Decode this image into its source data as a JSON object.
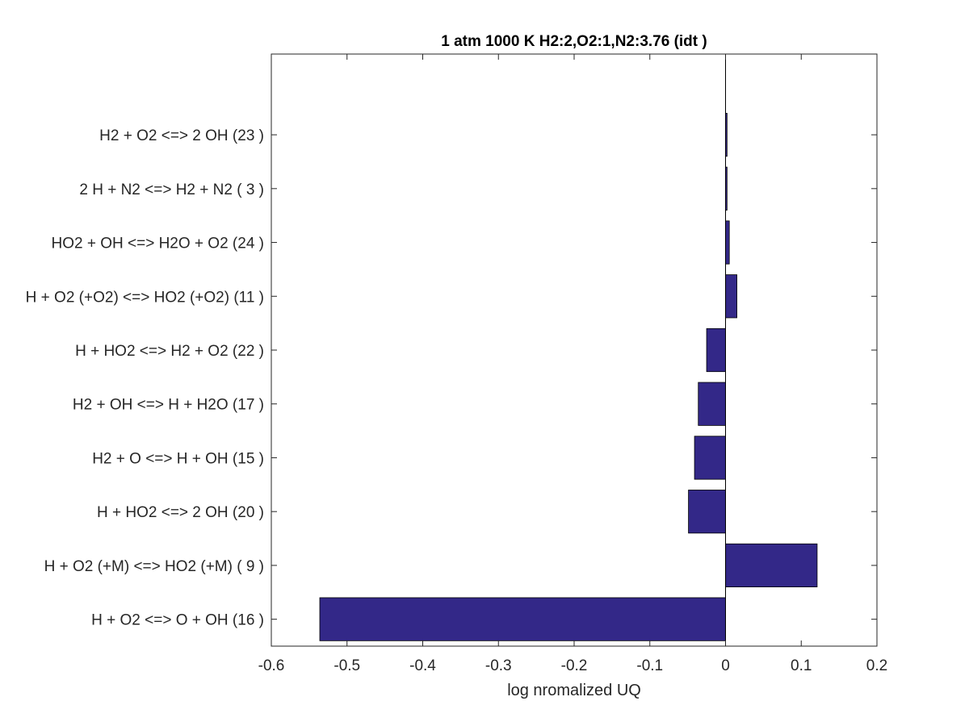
{
  "chart_data": {
    "type": "bar",
    "orientation": "horizontal",
    "title": "1 atm 1000 K H2:2,O2:1,N2:3.76 (idt )",
    "xlabel": "log nromalized UQ",
    "ylabel": "",
    "xlim": [
      -0.6,
      0.2
    ],
    "xticks": [
      "-0.6",
      "-0.5",
      "-0.4",
      "-0.3",
      "-0.2",
      "-0.1",
      "0",
      "0.1",
      "0.2"
    ],
    "grid": false,
    "legend": "none",
    "bar_color": "#332888",
    "categories": [
      "H + O2 <=> O + OH (16 )",
      "H + O2 (+M) <=> HO2 (+M) ( 9 )",
      "H + HO2 <=> 2 OH (20 )",
      "H2 + O <=> H + OH (15 )",
      "H2 + OH <=> H + H2O (17 )",
      "H + HO2 <=> H2 + O2 (22 )",
      "H + O2 (+O2) <=> HO2 (+O2) (11 )",
      "HO2 + OH <=> H2O + O2 (24 )",
      "2 H + N2 <=> H2 + N2 ( 3 )",
      "H2 + O2 <=> 2 OH (23 )"
    ],
    "values": [
      -0.536,
      0.121,
      -0.049,
      -0.041,
      -0.036,
      -0.025,
      0.015,
      0.005,
      0.002,
      0.002
    ]
  }
}
